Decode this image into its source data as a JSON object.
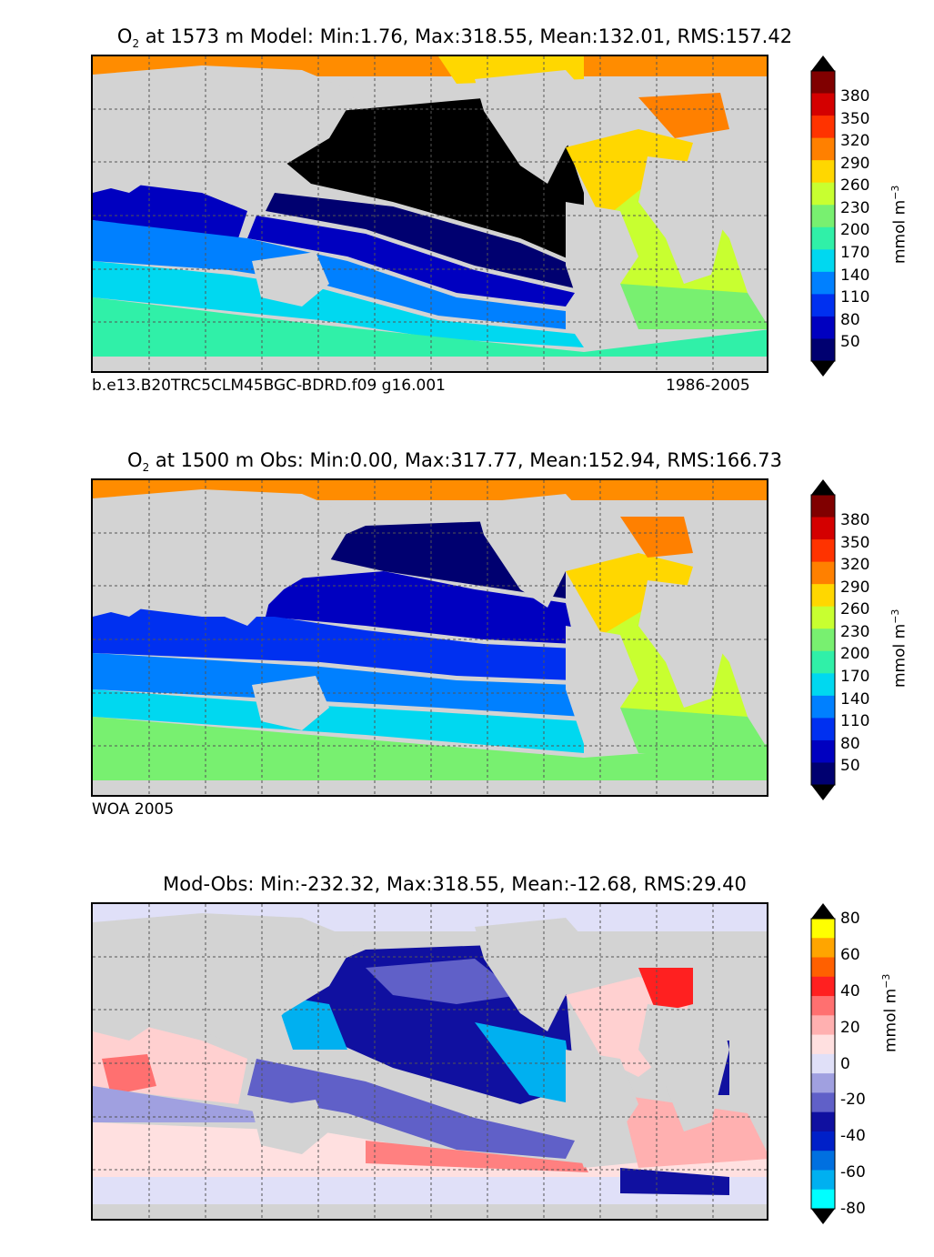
{
  "panels": [
    {
      "title_species": "O",
      "title_sub": "2",
      "title_rest": " at 1573 m Model: Min:1.76, Max:318.55, Mean:132.01, RMS:157.42",
      "footer_left": "b.e13.B20TRC5CLM45BGC-BDRD.f09 g16.001",
      "footer_right": "1986-2005",
      "unit": "mmol m",
      "unit_exp": "−3",
      "cbar_ticks": [
        "380",
        "350",
        "320",
        "290",
        "260",
        "230",
        "200",
        "170",
        "140",
        "110",
        "80",
        "50"
      ],
      "cbar_colors": [
        "#800000",
        "#d40000",
        "#ff3300",
        "#ff8000",
        "#ffd700",
        "#c8ff30",
        "#78f070",
        "#30f0a8",
        "#00d8f0",
        "#0080ff",
        "#0030f0",
        "#0000c0",
        "#000070"
      ]
    },
    {
      "title_species": "O",
      "title_sub": "2",
      "title_rest": " at 1500 m Obs: Min:0.00, Max:317.77, Mean:152.94, RMS:166.73",
      "footer_left": "WOA 2005",
      "footer_right": "",
      "unit": "mmol m",
      "unit_exp": "−3",
      "cbar_ticks": [
        "380",
        "350",
        "320",
        "290",
        "260",
        "230",
        "200",
        "170",
        "140",
        "110",
        "80",
        "50"
      ],
      "cbar_colors": [
        "#800000",
        "#d40000",
        "#ff3300",
        "#ff8000",
        "#ffd700",
        "#c8ff30",
        "#78f070",
        "#30f0a8",
        "#00d8f0",
        "#0080ff",
        "#0030f0",
        "#0000c0",
        "#000070"
      ]
    },
    {
      "title_species": "",
      "title_sub": "",
      "title_rest": "Mod-Obs: Min:-232.32, Max:318.55, Mean:-12.68, RMS:29.40",
      "footer_left": "",
      "footer_right": "",
      "unit": "mmol m",
      "unit_exp": "−3",
      "cbar_ticks": [
        "80",
        "60",
        "40",
        "20",
        "0",
        "-20",
        "-40",
        "-60",
        "-80"
      ],
      "cbar_colors": [
        "#ffff00",
        "#ffa500",
        "#ff6000",
        "#ff2020",
        "#ff7070",
        "#ffb0b0",
        "#ffe0e0",
        "#e0e0f8",
        "#a0a0e0",
        "#6060c8",
        "#1010a0",
        "#0020c8",
        "#0070e0",
        "#00b0f0",
        "#00ffff"
      ]
    }
  ]
}
